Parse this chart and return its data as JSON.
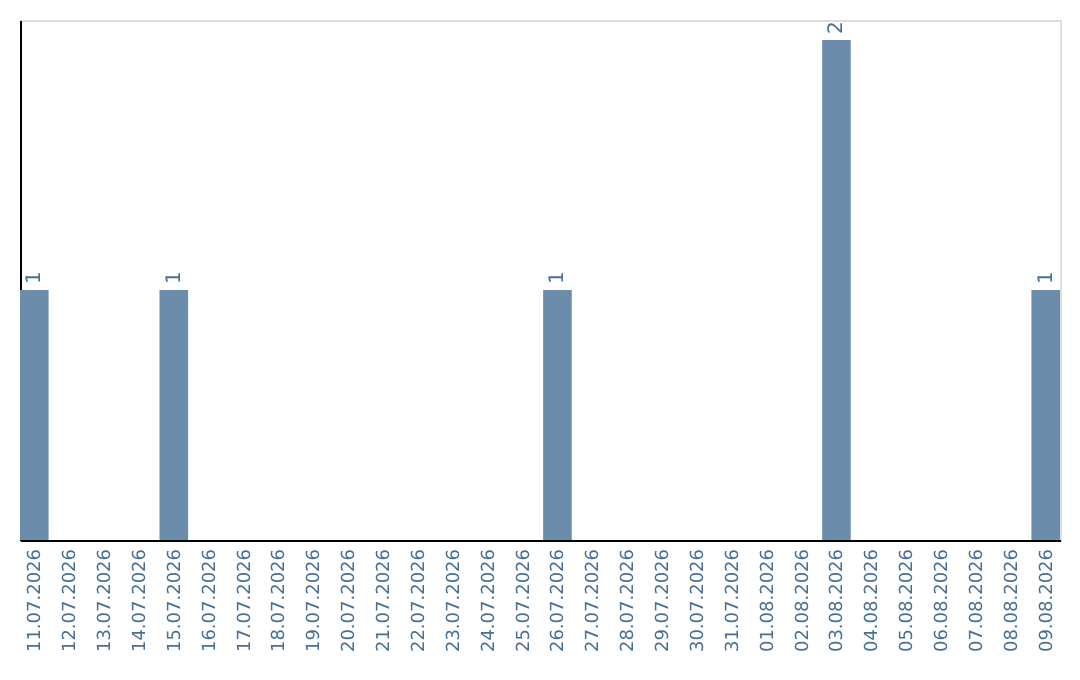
{
  "chart_data": {
    "type": "bar",
    "categories": [
      "11.07.2026",
      "12.07.2026",
      "13.07.2026",
      "14.07.2026",
      "15.07.2026",
      "16.07.2026",
      "17.07.2026",
      "18.07.2026",
      "19.07.2026",
      "20.07.2026",
      "21.07.2026",
      "22.07.2026",
      "23.07.2026",
      "24.07.2026",
      "25.07.2026",
      "26.07.2026",
      "27.07.2026",
      "28.07.2026",
      "29.07.2026",
      "30.07.2026",
      "31.07.2026",
      "01.08.2026",
      "02.08.2026",
      "03.08.2026",
      "04.08.2026",
      "05.08.2026",
      "06.08.2026",
      "07.08.2026",
      "08.08.2026",
      "09.08.2026"
    ],
    "values": [
      1,
      0,
      0,
      0,
      1,
      0,
      0,
      0,
      0,
      0,
      0,
      0,
      0,
      0,
      0,
      1,
      0,
      0,
      0,
      0,
      0,
      0,
      0,
      2,
      0,
      0,
      0,
      0,
      0,
      1
    ],
    "value_labels": [
      "1",
      null,
      null,
      null,
      "1",
      null,
      null,
      null,
      null,
      null,
      null,
      null,
      null,
      null,
      null,
      "1",
      null,
      null,
      null,
      null,
      null,
      null,
      null,
      "2",
      null,
      null,
      null,
      null,
      null,
      "1"
    ],
    "color": "#6b8caa",
    "ylim": [
      0,
      2.08
    ],
    "tick_labels": "x",
    "grid": false
  }
}
